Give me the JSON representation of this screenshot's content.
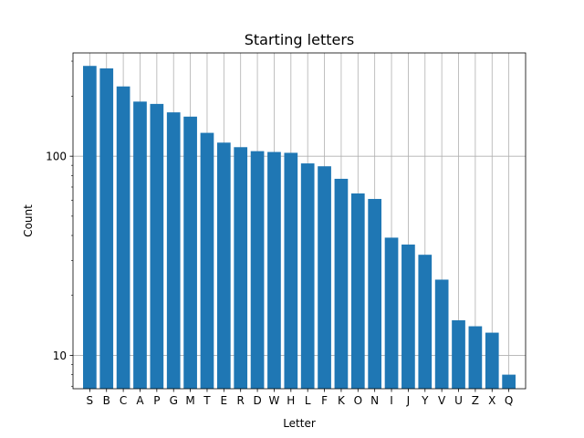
{
  "chart_data": {
    "type": "bar",
    "title": "Starting letters",
    "xlabel": "Letter",
    "ylabel": "Count",
    "yscale": "log",
    "ylim": [
      6.8,
      330
    ],
    "yticks": [
      10,
      100
    ],
    "ytick_labels": [
      "10",
      "100"
    ],
    "grid": true,
    "bar_color": "#1f77b4",
    "categories": [
      "S",
      "B",
      "C",
      "A",
      "P",
      "G",
      "M",
      "T",
      "E",
      "R",
      "D",
      "W",
      "H",
      "L",
      "F",
      "K",
      "O",
      "N",
      "I",
      "J",
      "Y",
      "V",
      "U",
      "Z",
      "X",
      "Q"
    ],
    "values": [
      284,
      276,
      224,
      188,
      183,
      166,
      158,
      131,
      117,
      111,
      106,
      105,
      104,
      92,
      89,
      77,
      65,
      61,
      39,
      36,
      32,
      24,
      15,
      14,
      13,
      8
    ]
  }
}
